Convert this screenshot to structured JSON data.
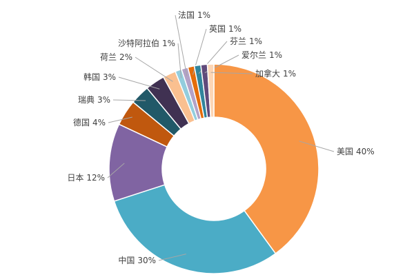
{
  "chart_data": {
    "type": "donut",
    "categories": [
      "美国",
      "中国",
      "日本",
      "德国",
      "瑞典",
      "韩国",
      "荷兰",
      "沙特阿拉伯",
      "法国",
      "英国",
      "芬兰",
      "爱尔兰",
      "加拿大"
    ],
    "values": [
      40,
      30,
      12,
      4,
      3,
      3,
      2,
      1,
      1,
      1,
      1,
      1,
      1
    ],
    "value_labels": [
      "40%",
      "30%",
      "12%",
      "4%",
      "3%",
      "3%",
      "2%",
      "1%",
      "1%",
      "1%",
      "1%",
      "1%",
      "1%"
    ],
    "colors": [
      "#f79646",
      "#4bacc6",
      "#8064a2",
      "#c0580e",
      "#215968",
      "#403152",
      "#fac090",
      "#93cddd",
      "#b3a2c7",
      "#e46c0a",
      "#31859c",
      "#604a7b",
      "#fcd5b5"
    ]
  }
}
